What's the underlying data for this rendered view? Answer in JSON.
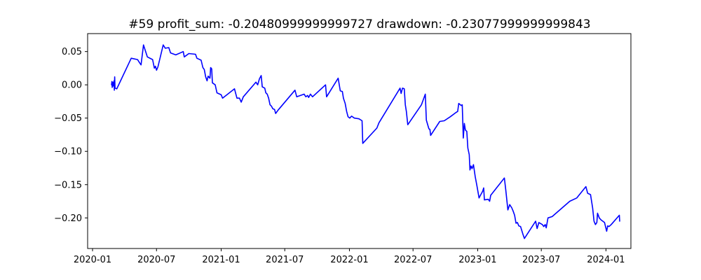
{
  "chart_data": {
    "type": "line",
    "title": "#59   profit_sum: -0.20480999999999727 drawdown: -0.23077999999999843",
    "xlabel": "",
    "ylabel": "",
    "x_axis_kind": "date",
    "xlim": [
      "2019-12-18",
      "2024-03-12"
    ],
    "ylim": [
      -0.246,
      0.077
    ],
    "grid": false,
    "legend": "none",
    "colors": {
      "line": "#0000ff",
      "axes": "#000000",
      "background": "#ffffff"
    },
    "xticks": [
      {
        "label": "2020-01",
        "date": "2020-01-01"
      },
      {
        "label": "2020-07",
        "date": "2020-07-01"
      },
      {
        "label": "2021-01",
        "date": "2021-01-01"
      },
      {
        "label": "2021-07",
        "date": "2021-07-01"
      },
      {
        "label": "2022-01",
        "date": "2022-01-01"
      },
      {
        "label": "2022-07",
        "date": "2022-07-01"
      },
      {
        "label": "2023-01",
        "date": "2023-01-01"
      },
      {
        "label": "2023-07",
        "date": "2023-07-01"
      },
      {
        "label": "2024-01",
        "date": "2024-01-01"
      }
    ],
    "yticks": [
      {
        "label": "0.05",
        "value": 0.05
      },
      {
        "label": "0.00",
        "value": 0.0
      },
      {
        "label": "−0.05",
        "value": -0.05
      },
      {
        "label": "−0.10",
        "value": -0.1
      },
      {
        "label": "−0.15",
        "value": -0.15
      },
      {
        "label": "−0.20",
        "value": -0.2
      }
    ],
    "series": [
      {
        "points": [
          [
            "2020-02-24",
            0.0
          ],
          [
            "2020-02-25",
            0.005
          ],
          [
            "2020-02-26",
            -0.004
          ],
          [
            "2020-02-27",
            0.004
          ],
          [
            "2020-02-28",
            -0.002
          ],
          [
            "2020-03-02",
            0.006
          ],
          [
            "2020-03-03",
            -0.008
          ],
          [
            "2020-03-04",
            0.012
          ],
          [
            "2020-03-05",
            -0.005
          ],
          [
            "2020-03-10",
            -0.006
          ],
          [
            "2020-04-20",
            0.04
          ],
          [
            "2020-05-08",
            0.038
          ],
          [
            "2020-05-14",
            0.033
          ],
          [
            "2020-05-18",
            0.03
          ],
          [
            "2020-05-25",
            0.06
          ],
          [
            "2020-06-05",
            0.042
          ],
          [
            "2020-06-20",
            0.038
          ],
          [
            "2020-06-25",
            0.025
          ],
          [
            "2020-06-28",
            0.028
          ],
          [
            "2020-07-01",
            0.022
          ],
          [
            "2020-07-05",
            0.027
          ],
          [
            "2020-07-20",
            0.06
          ],
          [
            "2020-07-26",
            0.055
          ],
          [
            "2020-08-05",
            0.056
          ],
          [
            "2020-08-10",
            0.048
          ],
          [
            "2020-08-25",
            0.045
          ],
          [
            "2020-09-15",
            0.05
          ],
          [
            "2020-09-18",
            0.042
          ],
          [
            "2020-10-01",
            0.047
          ],
          [
            "2020-10-20",
            0.046
          ],
          [
            "2020-10-24",
            0.04
          ],
          [
            "2020-11-05",
            0.037
          ],
          [
            "2020-11-10",
            0.026
          ],
          [
            "2020-11-14",
            0.023
          ],
          [
            "2020-11-18",
            0.012
          ],
          [
            "2020-11-22",
            0.006
          ],
          [
            "2020-11-25",
            0.013
          ],
          [
            "2020-11-30",
            0.01
          ],
          [
            "2020-12-02",
            0.026
          ],
          [
            "2020-12-05",
            0.024
          ],
          [
            "2020-12-07",
            0.003
          ],
          [
            "2020-12-15",
            0.0
          ],
          [
            "2020-12-20",
            -0.012
          ],
          [
            "2021-01-01",
            -0.015
          ],
          [
            "2021-01-05",
            -0.02
          ],
          [
            "2021-02-08",
            -0.006
          ],
          [
            "2021-02-15",
            -0.02
          ],
          [
            "2021-02-22",
            -0.02
          ],
          [
            "2021-02-27",
            -0.026
          ],
          [
            "2021-03-05",
            -0.018
          ],
          [
            "2021-04-10",
            0.004
          ],
          [
            "2021-04-15",
            0.0
          ],
          [
            "2021-04-20",
            0.009
          ],
          [
            "2021-04-25",
            0.014
          ],
          [
            "2021-04-28",
            -0.003
          ],
          [
            "2021-05-05",
            -0.005
          ],
          [
            "2021-05-08",
            -0.012
          ],
          [
            "2021-05-12",
            -0.014
          ],
          [
            "2021-05-16",
            -0.02
          ],
          [
            "2021-05-20",
            -0.03
          ],
          [
            "2021-05-24",
            -0.032
          ],
          [
            "2021-05-28",
            -0.036
          ],
          [
            "2021-06-02",
            -0.037
          ],
          [
            "2021-06-05",
            -0.043
          ],
          [
            "2021-06-12",
            -0.038
          ],
          [
            "2021-07-30",
            -0.008
          ],
          [
            "2021-08-04",
            -0.018
          ],
          [
            "2021-08-25",
            -0.014
          ],
          [
            "2021-08-30",
            -0.018
          ],
          [
            "2021-09-04",
            -0.016
          ],
          [
            "2021-09-07",
            -0.019
          ],
          [
            "2021-09-12",
            -0.014
          ],
          [
            "2021-09-18",
            -0.018
          ],
          [
            "2021-10-25",
            -0.0
          ],
          [
            "2021-10-28",
            -0.018
          ],
          [
            "2021-11-30",
            0.01
          ],
          [
            "2021-12-06",
            -0.009
          ],
          [
            "2021-12-12",
            -0.01
          ],
          [
            "2021-12-15",
            -0.02
          ],
          [
            "2021-12-20",
            -0.028
          ],
          [
            "2021-12-24",
            -0.04
          ],
          [
            "2021-12-28",
            -0.048
          ],
          [
            "2022-01-02",
            -0.05
          ],
          [
            "2022-01-07",
            -0.047
          ],
          [
            "2022-01-15",
            -0.05
          ],
          [
            "2022-01-28",
            -0.051
          ],
          [
            "2022-02-06",
            -0.054
          ],
          [
            "2022-02-08",
            -0.088
          ],
          [
            "2022-03-20",
            -0.065
          ],
          [
            "2022-03-26",
            -0.057
          ],
          [
            "2022-05-25",
            -0.005
          ],
          [
            "2022-05-28",
            -0.013
          ],
          [
            "2022-06-01",
            -0.005
          ],
          [
            "2022-06-06",
            -0.006
          ],
          [
            "2022-06-09",
            -0.03
          ],
          [
            "2022-06-12",
            -0.04
          ],
          [
            "2022-06-16",
            -0.06
          ],
          [
            "2022-07-25",
            -0.03
          ],
          [
            "2022-08-05",
            -0.014
          ],
          [
            "2022-08-08",
            -0.053
          ],
          [
            "2022-08-15",
            -0.066
          ],
          [
            "2022-08-18",
            -0.067
          ],
          [
            "2022-08-20",
            -0.076
          ],
          [
            "2022-09-15",
            -0.055
          ],
          [
            "2022-09-28",
            -0.054
          ],
          [
            "2022-10-15",
            -0.048
          ],
          [
            "2022-10-30",
            -0.042
          ],
          [
            "2022-11-05",
            -0.04
          ],
          [
            "2022-11-08",
            -0.028
          ],
          [
            "2022-11-15",
            -0.031
          ],
          [
            "2022-11-18",
            -0.03
          ],
          [
            "2022-11-21",
            -0.08
          ],
          [
            "2022-11-24",
            -0.058
          ],
          [
            "2022-11-27",
            -0.068
          ],
          [
            "2022-12-01",
            -0.07
          ],
          [
            "2022-12-04",
            -0.095
          ],
          [
            "2022-12-08",
            -0.105
          ],
          [
            "2022-12-10",
            -0.128
          ],
          [
            "2022-12-13",
            -0.122
          ],
          [
            "2022-12-16",
            -0.126
          ],
          [
            "2022-12-20",
            -0.12
          ],
          [
            "2022-12-25",
            -0.138
          ],
          [
            "2022-12-30",
            -0.152
          ],
          [
            "2023-01-05",
            -0.17
          ],
          [
            "2023-01-10",
            -0.165
          ],
          [
            "2023-01-15",
            -0.16
          ],
          [
            "2023-01-18",
            -0.155
          ],
          [
            "2023-01-20",
            -0.173
          ],
          [
            "2023-01-31",
            -0.172
          ],
          [
            "2023-02-04",
            -0.175
          ],
          [
            "2023-02-07",
            -0.166
          ],
          [
            "2023-03-18",
            -0.14
          ],
          [
            "2023-03-22",
            -0.158
          ],
          [
            "2023-03-28",
            -0.188
          ],
          [
            "2023-04-02",
            -0.18
          ],
          [
            "2023-04-08",
            -0.185
          ],
          [
            "2023-04-12",
            -0.19
          ],
          [
            "2023-04-16",
            -0.196
          ],
          [
            "2023-04-20",
            -0.208
          ],
          [
            "2023-04-24",
            -0.207
          ],
          [
            "2023-04-28",
            -0.212
          ],
          [
            "2023-05-03",
            -0.213
          ],
          [
            "2023-05-10",
            -0.225
          ],
          [
            "2023-05-14",
            -0.231
          ],
          [
            "2023-06-15",
            -0.205
          ],
          [
            "2023-06-19",
            -0.216
          ],
          [
            "2023-06-24",
            -0.207
          ],
          [
            "2023-07-04",
            -0.21
          ],
          [
            "2023-07-08",
            -0.213
          ],
          [
            "2023-07-12",
            -0.21
          ],
          [
            "2023-07-15",
            -0.215
          ],
          [
            "2023-07-20",
            -0.2
          ],
          [
            "2023-08-01",
            -0.198
          ],
          [
            "2023-09-20",
            -0.175
          ],
          [
            "2023-10-10",
            -0.17
          ],
          [
            "2023-11-05",
            -0.153
          ],
          [
            "2023-11-10",
            -0.163
          ],
          [
            "2023-11-18",
            -0.165
          ],
          [
            "2023-11-24",
            -0.185
          ],
          [
            "2023-11-28",
            -0.205
          ],
          [
            "2023-12-02",
            -0.21
          ],
          [
            "2023-12-06",
            -0.207
          ],
          [
            "2023-12-08",
            -0.193
          ],
          [
            "2023-12-13",
            -0.2
          ],
          [
            "2023-12-18",
            -0.203
          ],
          [
            "2023-12-28",
            -0.207
          ],
          [
            "2024-01-03",
            -0.22
          ],
          [
            "2024-01-06",
            -0.212
          ],
          [
            "2024-01-10",
            -0.213
          ],
          [
            "2024-01-16",
            -0.21
          ],
          [
            "2024-02-08",
            -0.196
          ],
          [
            "2024-02-09",
            -0.205
          ]
        ]
      }
    ]
  }
}
